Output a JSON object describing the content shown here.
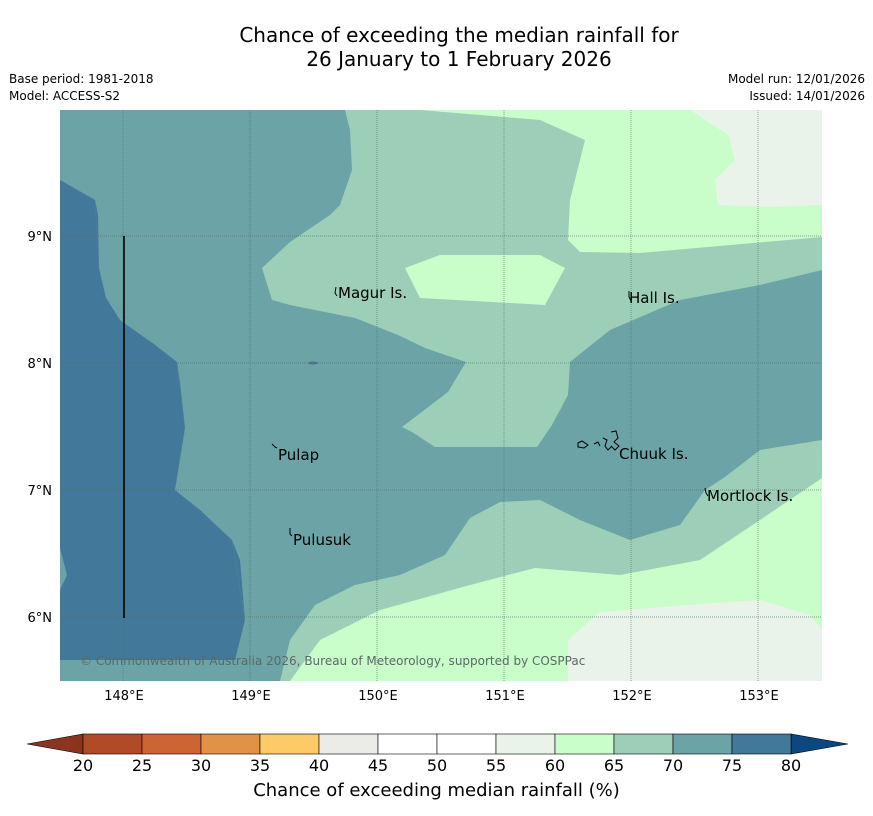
{
  "title": {
    "line1": "Chance of exceeding the median rainfall for",
    "line2": "26 January to 1 February 2026"
  },
  "info": {
    "base_period": "Base period: 1981-2018",
    "model": "Model: ACCESS-S2",
    "model_run": "Model run: 12/01/2026",
    "issued": "Issued: 14/01/2026"
  },
  "map": {
    "lon_ticks": [
      "148°E",
      "149°E",
      "150°E",
      "151°E",
      "152°E",
      "153°E"
    ],
    "lat_ticks": [
      "9°N",
      "8°N",
      "7°N",
      "6°N"
    ],
    "places": [
      {
        "name": "Magur Is."
      },
      {
        "name": "Hall Is."
      },
      {
        "name": "Pulap"
      },
      {
        "name": "Chuuk Is."
      },
      {
        "name": "Mortlock Is."
      },
      {
        "name": "Pulusuk"
      }
    ],
    "copyright": "© Commonwealth of Australia 2026, Bureau of Meteorology, supported by COSPPac"
  },
  "colorbar": {
    "ticks": [
      "20",
      "25",
      "30",
      "35",
      "40",
      "45",
      "50",
      "55",
      "60",
      "65",
      "70",
      "75",
      "80"
    ],
    "colors": [
      "#b04a27",
      "#cd6433",
      "#e09347",
      "#fdca68",
      "#ebebe7",
      "#ffffff",
      "#ffffff",
      "#eaf3ea",
      "#c9fdc9",
      "#9dcfb8",
      "#6ba3a6",
      "#42789a"
    ],
    "under_color": "#8b3420",
    "over_color": "#0c4780",
    "label": "Chance of exceeding median rainfall (%)"
  }
}
